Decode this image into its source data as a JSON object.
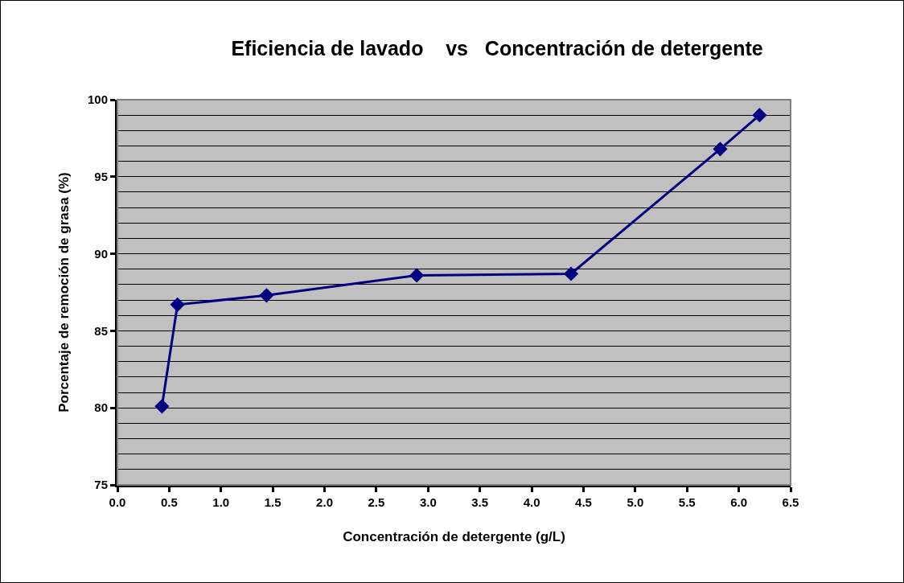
{
  "chart_data": {
    "type": "line",
    "title": "Eficiencia de lavado    vs   Concentración de detergente",
    "xlabel": "Concentración de detergente (g/L)",
    "ylabel": "Porcentaje de remoción de grasa (%)",
    "x": [
      0.43,
      0.58,
      1.44,
      2.89,
      4.38,
      5.82,
      6.2
    ],
    "series": [
      {
        "color": "#000080",
        "values": [
          80.1,
          86.7,
          87.3,
          88.6,
          88.7,
          96.8,
          99.0
        ]
      }
    ],
    "xlim": [
      0,
      6.5
    ],
    "xticks": [
      {
        "value": 0,
        "label": "0.0"
      },
      0.5,
      {
        "value": 1,
        "label": "1.0"
      },
      1.5,
      {
        "value": 2,
        "label": "2.0"
      },
      2.5,
      {
        "value": 3,
        "label": "3.0"
      },
      3.5,
      {
        "value": 4,
        "label": "4.0"
      },
      4.5,
      {
        "value": 5,
        "label": "5.0"
      },
      5.5,
      {
        "value": 6,
        "label": "6.0"
      },
      6.5
    ],
    "ylim": [
      75,
      100
    ],
    "yticks": [
      75,
      80,
      85,
      90,
      95,
      100
    ],
    "grid": "y",
    "marker": "diamond",
    "line_style": "solid"
  }
}
